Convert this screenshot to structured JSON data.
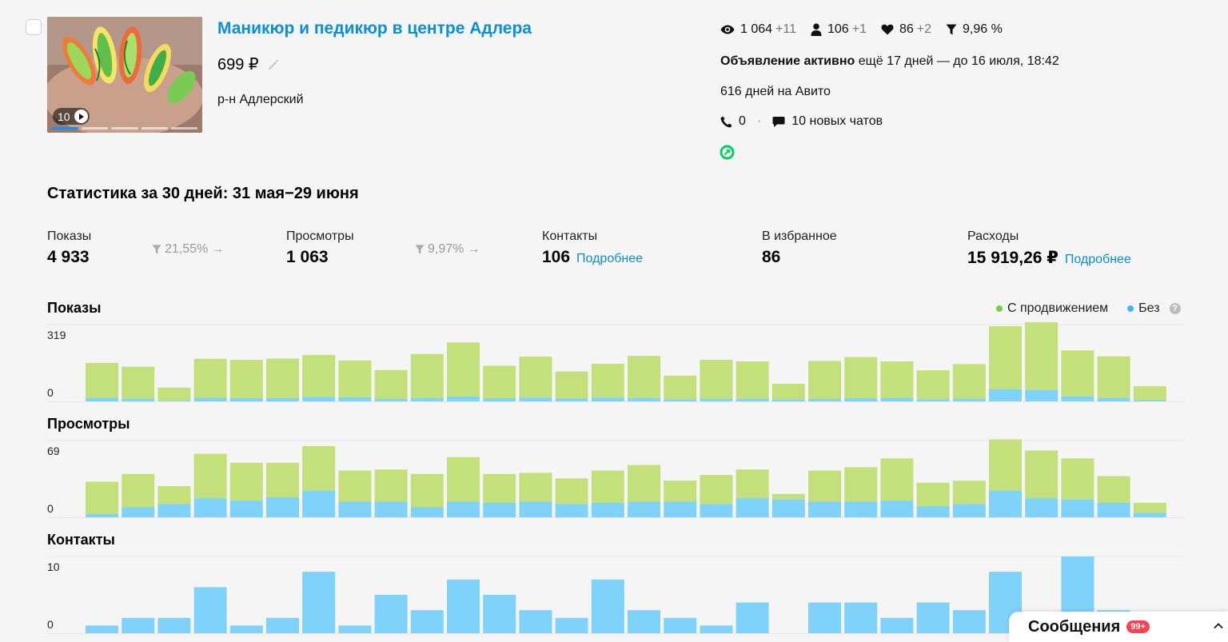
{
  "listing": {
    "title": "Маникюр и педикюр в центре Адлера",
    "price": "699 ₽",
    "district": "р-н Адлерский",
    "photo_count": "10"
  },
  "metrics": {
    "views": "1 064",
    "views_delta": "+11",
    "contacts": "106",
    "contacts_delta": "+1",
    "favorites": "86",
    "favorites_delta": "+2",
    "conversion": "9,96 %"
  },
  "status": {
    "active_label": "Объявление активно",
    "remaining": " ещё 17 дней — до 16 июля, 18:42",
    "days_on_avito": "616 дней на Авито",
    "calls": "0",
    "chats": "10 новых чатов"
  },
  "stats": {
    "heading": "Статистика за 30 дней: 31 мая−29 июня",
    "kpis": [
      {
        "label": "Показы",
        "value": "4 933"
      },
      {
        "label": "Просмотры",
        "value": "1 063"
      },
      {
        "label": "Контакты",
        "value": "106",
        "link": "Подробнее"
      },
      {
        "label": "В избранное",
        "value": "86"
      },
      {
        "label": "Расходы",
        "value": "15 919,26 ₽",
        "link": "Подробнее"
      }
    ],
    "conversions": [
      "21,55%",
      "9,97%"
    ]
  },
  "legend": {
    "promo": "С продвижением",
    "organic": "Без",
    "help": "?"
  },
  "colors": {
    "promo": "#c4e07a",
    "organic": "#7fd2fa",
    "link": "#0a8fd8",
    "badge": "#ff4053"
  },
  "chart_data": [
    {
      "type": "bar",
      "title": "Показы",
      "stacked": true,
      "ylim": [
        0,
        319
      ],
      "y_ticks": [
        "319",
        "0"
      ],
      "series": [
        {
          "name": "Без",
          "values": [
            14,
            11,
            3,
            15,
            13,
            13,
            18,
            17,
            10,
            14,
            20,
            13,
            16,
            12,
            16,
            14,
            9,
            11,
            11,
            8,
            10,
            13,
            14,
            9,
            11,
            50,
            47,
            21,
            14,
            5
          ]
        },
        {
          "name": "С продвижением",
          "values": [
            146,
            133,
            54,
            162,
            160,
            165,
            175,
            153,
            120,
            183,
            225,
            135,
            170,
            112,
            140,
            175,
            98,
            162,
            155,
            65,
            158,
            171,
            152,
            120,
            144,
            262,
            282,
            191,
            173,
            58
          ]
        }
      ]
    },
    {
      "type": "bar",
      "title": "Просмотры",
      "stacked": true,
      "ylim": [
        0,
        69
      ],
      "y_ticks": [
        "69",
        "0"
      ],
      "series": [
        {
          "name": "Без",
          "values": [
            3,
            9,
            12,
            17,
            15,
            18,
            24,
            14,
            14,
            9,
            14,
            13,
            14,
            12,
            13,
            14,
            14,
            12,
            17,
            16,
            14,
            14,
            15,
            10,
            12,
            24,
            17,
            16,
            13,
            4
          ]
        },
        {
          "name": "С продвижением",
          "values": [
            29,
            30,
            16,
            40,
            34,
            31,
            40,
            28,
            29,
            30,
            40,
            26,
            26,
            23,
            29,
            33,
            19,
            26,
            26,
            5,
            28,
            31,
            38,
            21,
            21,
            46,
            43,
            37,
            24,
            9
          ]
        }
      ]
    },
    {
      "type": "bar",
      "title": "Контакты",
      "ylim": [
        0,
        10
      ],
      "y_ticks": [
        "10",
        "0"
      ],
      "series": [
        {
          "name": "Без",
          "values": [
            1,
            2,
            2,
            6,
            1,
            2,
            8,
            1,
            5,
            3,
            7,
            5,
            3,
            2,
            7,
            3,
            2,
            1,
            4,
            0,
            4,
            4,
            2,
            4,
            3,
            8,
            0,
            10,
            3,
            0
          ]
        }
      ]
    }
  ],
  "messages": {
    "label": "Сообщения",
    "badge": "99+"
  }
}
